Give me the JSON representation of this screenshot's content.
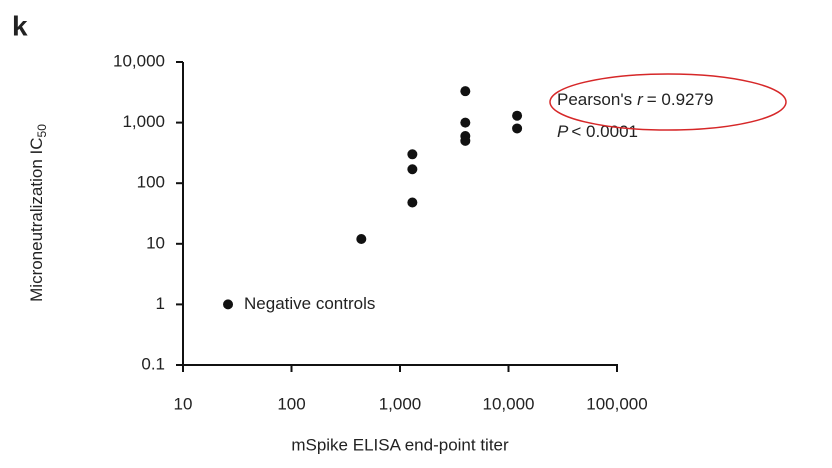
{
  "chart_data": {
    "type": "scatter",
    "panel_label": "k",
    "x_label": "mSpike ELISA end-point titer",
    "y_label": {
      "text": "Microneutralization IC",
      "subscript": "50"
    },
    "xscale": "log",
    "yscale": "log",
    "xlim": [
      10,
      100000
    ],
    "ylim": [
      0.1,
      10000
    ],
    "xticks": [
      10,
      100,
      {
        "value": 1000,
        "label": "1,000"
      },
      {
        "value": 10000,
        "label": "10,000"
      },
      {
        "value": 100000,
        "label": "100,000"
      }
    ],
    "yticks": [
      0.1,
      1,
      10,
      100,
      {
        "value": 1000,
        "label": "1,000"
      },
      {
        "value": 10000,
        "label": "10,000"
      }
    ],
    "series": [
      {
        "color": "#111111",
        "x": [
          440,
          1300,
          1300,
          1300,
          4000,
          4000,
          4000,
          4000,
          12000,
          12000
        ],
        "values": [
          12,
          300,
          170,
          48,
          3300,
          1000,
          600,
          500,
          1300,
          800
        ]
      },
      {
        "name": "Negative controls",
        "color": "#111111",
        "x": [
          26
        ],
        "values": [
          1
        ]
      }
    ],
    "stats": {
      "pearson": [
        "Pearson's",
        "r",
        "= 0.9279"
      ],
      "p": [
        "P",
        "< 0.0001"
      ]
    },
    "highlight_color": "#d62728"
  }
}
